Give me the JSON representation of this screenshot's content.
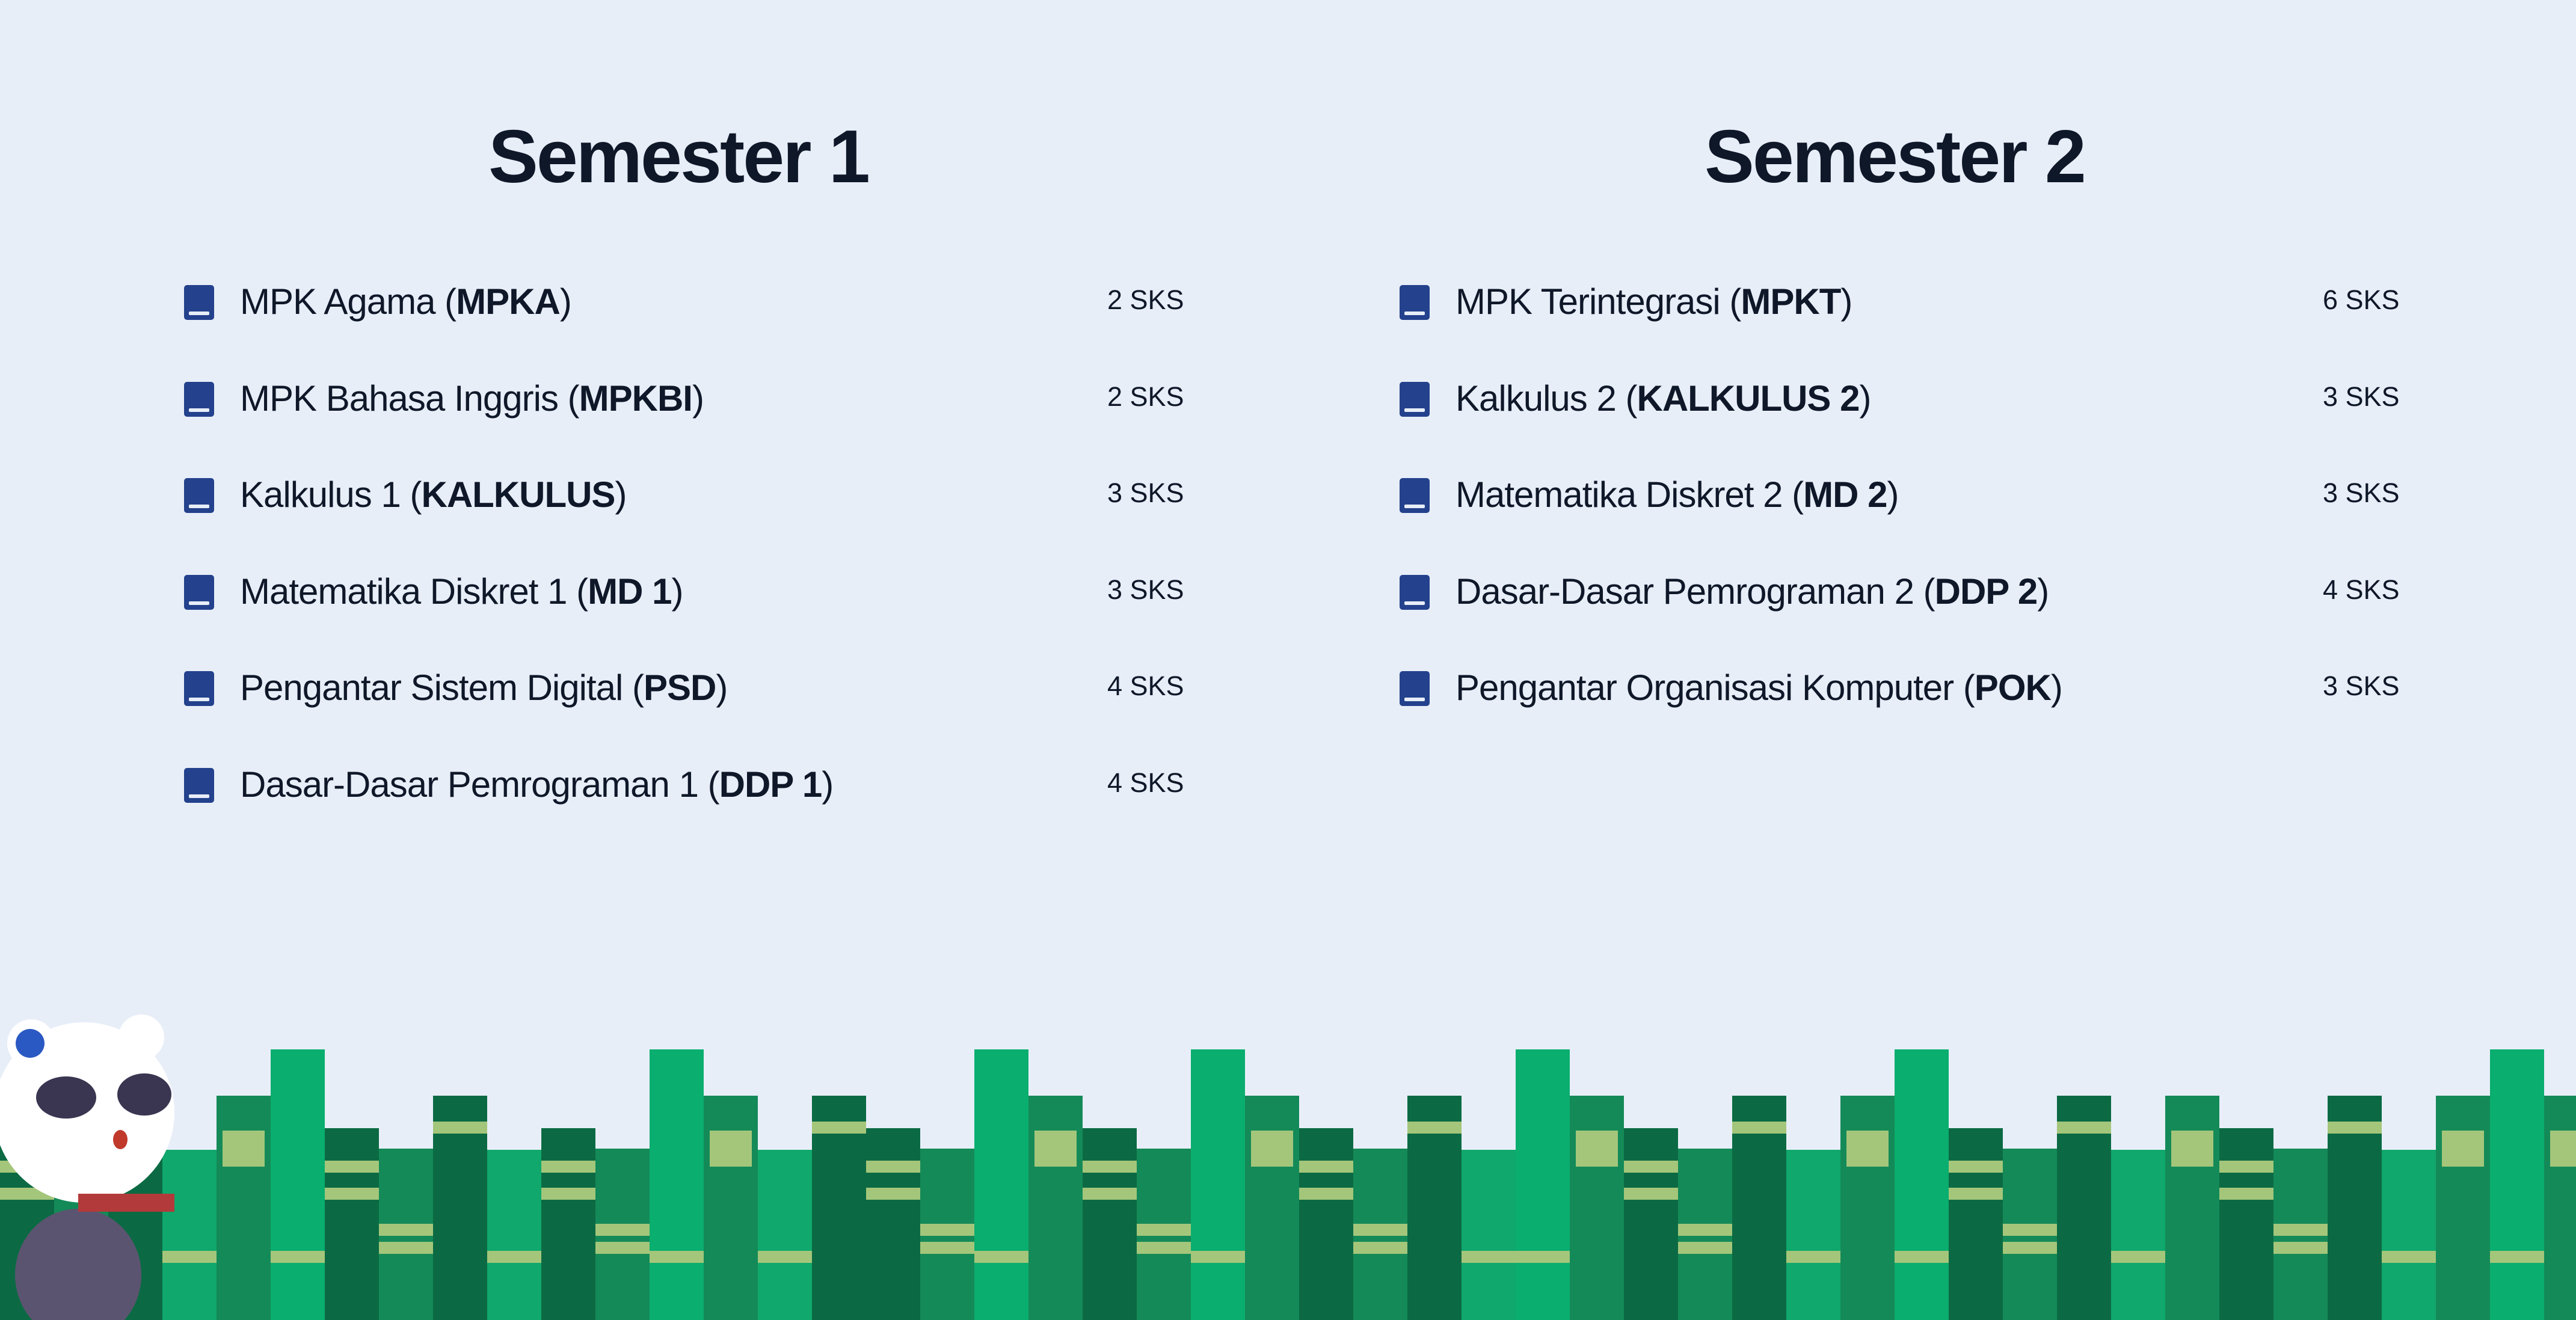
{
  "code_brackets": [
    "(",
    ")"
  ],
  "semesters": [
    {
      "title": "Semester 1",
      "courses": [
        {
          "name": "MPK Agama",
          "code": "MPKA",
          "credits": "2 SKS"
        },
        {
          "name": "MPK Bahasa Inggris",
          "code": "MPKBI",
          "credits": "2 SKS"
        },
        {
          "name": "Kalkulus 1",
          "code": "KALKULUS",
          "credits": "3 SKS"
        },
        {
          "name": "Matematika Diskret 1",
          "code": "MD 1",
          "credits": "3 SKS"
        },
        {
          "name": "Pengantar Sistem Digital",
          "code": "PSD",
          "credits": "4 SKS"
        },
        {
          "name": "Dasar-Dasar Pemrograman 1",
          "code": "DDP 1",
          "credits": "4 SKS"
        }
      ]
    },
    {
      "title": "Semester 2",
      "courses": [
        {
          "name": "MPK Terintegrasi",
          "code": "MPKT",
          "credits": "6 SKS"
        },
        {
          "name": "Kalkulus 2",
          "code": "KALKULUS 2",
          "credits": "3 SKS"
        },
        {
          "name": "Matematika Diskret 2",
          "code": "MD 2",
          "credits": "3 SKS"
        },
        {
          "name": "Dasar-Dasar Pemrograman 2",
          "code": "DDP 2",
          "credits": "4 SKS"
        },
        {
          "name": "Pengantar Organisasi Komputer",
          "code": "POK",
          "credits": "3 SKS"
        }
      ]
    }
  ]
}
